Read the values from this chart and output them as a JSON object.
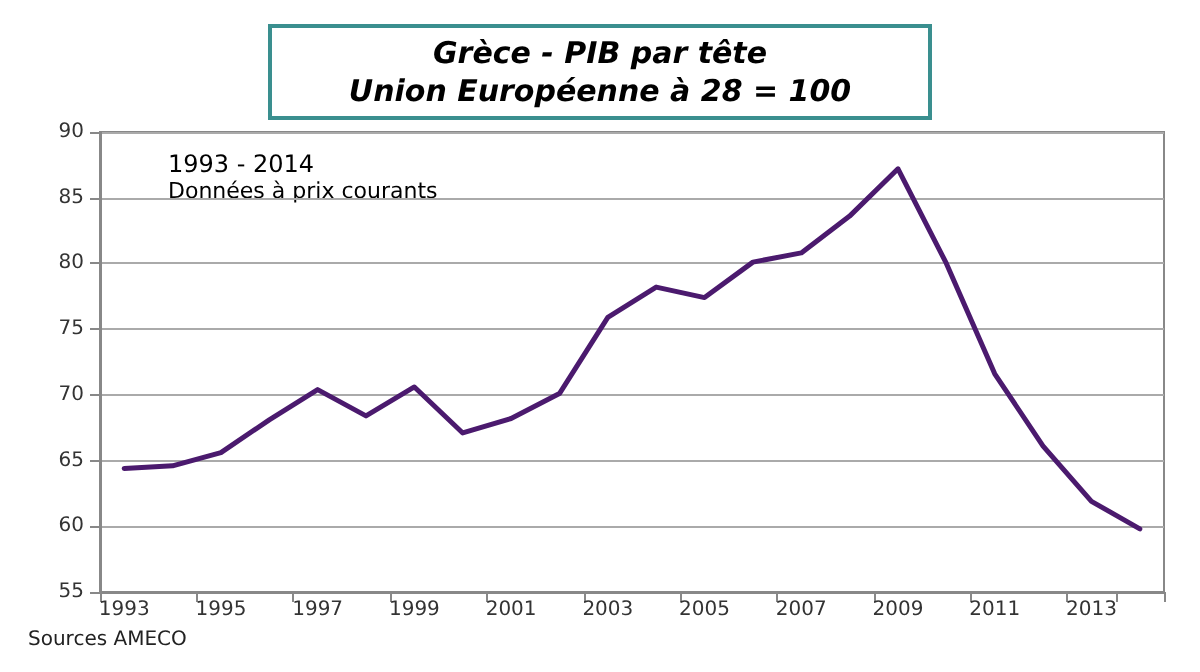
{
  "chart_data": {
    "type": "line",
    "title": "Grèce - PIB par tête\nUnion Européenne à 28 = 100",
    "categories": [
      "1993",
      null,
      "1995",
      null,
      "1997",
      null,
      "1999",
      null,
      "2001",
      null,
      "2003",
      null,
      "2005",
      null,
      "2007",
      null,
      "2009",
      null,
      "2011",
      null,
      "2013",
      null
    ],
    "series": [
      {
        "color": "#4b1a6e",
        "values": [
          64.4,
          64.6,
          65.6,
          68.1,
          70.4,
          68.4,
          70.6,
          67.1,
          68.2,
          70.1,
          75.9,
          78.2,
          77.4,
          80.1,
          80.8,
          83.6,
          87.2,
          80.0,
          71.6,
          66.1,
          61.9,
          59.8
        ]
      }
    ],
    "ylim": [
      55,
      90
    ],
    "yticks": [
      55,
      60,
      65,
      70,
      75,
      80,
      85,
      90
    ],
    "grid": "y",
    "marker": "none",
    "line_style": "solid",
    "annotations": [
      "1993 - 2014",
      "Données à prix courants",
      "Sources AMECO"
    ]
  }
}
